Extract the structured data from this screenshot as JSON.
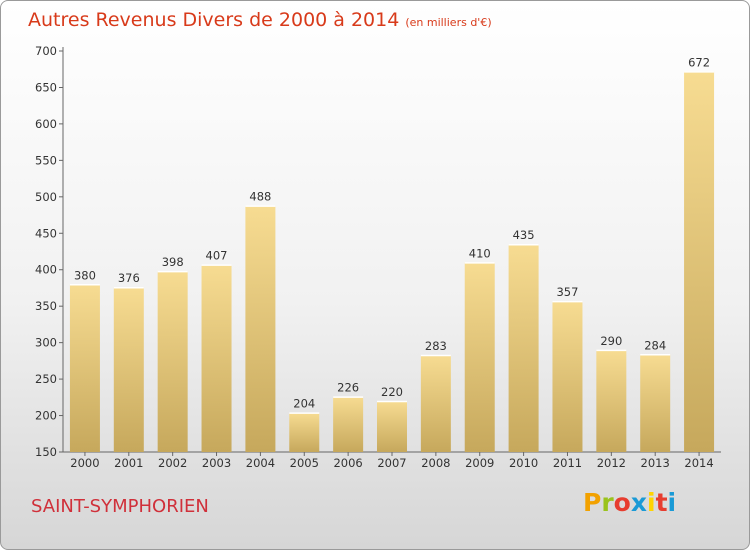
{
  "header": {
    "title": "Autres Revenus Divers de 2000 à 2014",
    "unit": "(en milliers d'€)"
  },
  "footer": {
    "place": "SAINT-SYMPHORIEN",
    "logo": "Proxiti",
    "logo_colors": [
      "#f2a100",
      "#9ac31c",
      "#e73d2f",
      "#1a9ad6",
      "#ffd400",
      "#e73d2f",
      "#1a9ad6"
    ]
  },
  "colors": {
    "bar_light": "#f7dc92",
    "bar_dark": "#c6a85c",
    "title": "#d83a1a"
  },
  "chart_data": {
    "type": "bar",
    "title": "Autres Revenus Divers de 2000 à 2014",
    "subtitle": "(en milliers d'€)",
    "categories": [
      "2000",
      "2001",
      "2002",
      "2003",
      "2004",
      "2005",
      "2006",
      "2007",
      "2008",
      "2009",
      "2010",
      "2011",
      "2012",
      "2013",
      "2014"
    ],
    "values": [
      380,
      376,
      398,
      407,
      488,
      204,
      226,
      220,
      283,
      410,
      435,
      357,
      290,
      284,
      672
    ],
    "ylim": [
      150,
      700
    ],
    "yticks": [
      150,
      200,
      250,
      300,
      350,
      400,
      450,
      500,
      550,
      600,
      650,
      700
    ],
    "grid": false,
    "legend": "none"
  }
}
